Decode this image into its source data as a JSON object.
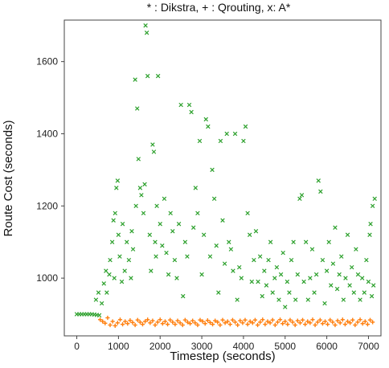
{
  "chart_data": {
    "type": "scatter",
    "title": "* : Dikstra, + : Qrouting, x: A*",
    "xlabel": "Timestep (seconds)",
    "ylabel": "Route Cost (seconds)",
    "xlim": [
      -300,
      7300
    ],
    "ylim": [
      840,
      1715
    ],
    "x_ticks": [
      0,
      1000,
      2000,
      3000,
      4000,
      5000,
      6000,
      7000
    ],
    "y_ticks": [
      1000,
      1200,
      1400,
      1600
    ],
    "grid": false,
    "legend": "none",
    "series": [
      {
        "marker": "x",
        "color": "#2ca02c",
        "points": [
          [
            0,
            900
          ],
          [
            60,
            900
          ],
          [
            120,
            900
          ],
          [
            180,
            900
          ],
          [
            240,
            900
          ],
          [
            300,
            900
          ],
          [
            360,
            900
          ],
          [
            420,
            899
          ],
          [
            480,
            898
          ],
          [
            540,
            897
          ],
          [
            460,
            940
          ],
          [
            520,
            960
          ],
          [
            600,
            930
          ],
          [
            650,
            985
          ],
          [
            700,
            1020
          ],
          [
            720,
            960
          ],
          [
            780,
            1010
          ],
          [
            800,
            1050
          ],
          [
            850,
            1100
          ],
          [
            880,
            1160
          ],
          [
            900,
            1000
          ],
          [
            920,
            1180
          ],
          [
            950,
            1250
          ],
          [
            980,
            1270
          ],
          [
            1000,
            1120
          ],
          [
            1030,
            1060
          ],
          [
            1080,
            990
          ],
          [
            1100,
            1150
          ],
          [
            1150,
            1020
          ],
          [
            1200,
            1100
          ],
          [
            1250,
            1050
          ],
          [
            1300,
            1000
          ],
          [
            1320,
            1130
          ],
          [
            1350,
            1080
          ],
          [
            1400,
            1550
          ],
          [
            1420,
            1200
          ],
          [
            1450,
            1470
          ],
          [
            1480,
            1330
          ],
          [
            1520,
            1250
          ],
          [
            1550,
            1230
          ],
          [
            1600,
            1180
          ],
          [
            1630,
            1260
          ],
          [
            1650,
            1700
          ],
          [
            1680,
            1680
          ],
          [
            1700,
            1560
          ],
          [
            1750,
            1120
          ],
          [
            1780,
            1020
          ],
          [
            1820,
            1370
          ],
          [
            1850,
            1350
          ],
          [
            1880,
            1100
          ],
          [
            1900,
            1060
          ],
          [
            1920,
            1200
          ],
          [
            1950,
            1560
          ],
          [
            2000,
            1150
          ],
          [
            2050,
            1090
          ],
          [
            2100,
            1220
          ],
          [
            2150,
            1070
          ],
          [
            2200,
            1010
          ],
          [
            2250,
            1180
          ],
          [
            2300,
            1130
          ],
          [
            2350,
            1050
          ],
          [
            2400,
            1000
          ],
          [
            2450,
            1150
          ],
          [
            2500,
            1480
          ],
          [
            2550,
            950
          ],
          [
            2600,
            1100
          ],
          [
            2650,
            1060
          ],
          [
            2700,
            1480
          ],
          [
            2750,
            1460
          ],
          [
            2800,
            1140
          ],
          [
            2850,
            1250
          ],
          [
            2900,
            1180
          ],
          [
            2950,
            1380
          ],
          [
            3000,
            1010
          ],
          [
            3050,
            1120
          ],
          [
            3100,
            1440
          ],
          [
            3150,
            1420
          ],
          [
            3200,
            1060
          ],
          [
            3250,
            1300
          ],
          [
            3300,
            1220
          ],
          [
            3350,
            1090
          ],
          [
            3400,
            960
          ],
          [
            3450,
            1380
          ],
          [
            3500,
            1160
          ],
          [
            3550,
            1040
          ],
          [
            3600,
            1400
          ],
          [
            3650,
            1100
          ],
          [
            3700,
            1080
          ],
          [
            3750,
            1020
          ],
          [
            3800,
            1400
          ],
          [
            3850,
            940
          ],
          [
            3900,
            1030
          ],
          [
            3950,
            1000
          ],
          [
            4000,
            1380
          ],
          [
            4050,
            1420
          ],
          [
            4100,
            1180
          ],
          [
            4150,
            1120
          ],
          [
            4200,
            990
          ],
          [
            4250,
            1050
          ],
          [
            4300,
            1130
          ],
          [
            4350,
            990
          ],
          [
            4400,
            1060
          ],
          [
            4450,
            950
          ],
          [
            4500,
            1020
          ],
          [
            4550,
            980
          ],
          [
            4600,
            1050
          ],
          [
            4650,
            1100
          ],
          [
            4700,
            960
          ],
          [
            4750,
            1000
          ],
          [
            4800,
            1030
          ],
          [
            4850,
            940
          ],
          [
            4900,
            1010
          ],
          [
            4950,
            1070
          ],
          [
            5000,
            920
          ],
          [
            5050,
            990
          ],
          [
            5100,
            960
          ],
          [
            5150,
            1050
          ],
          [
            5200,
            1100
          ],
          [
            5250,
            940
          ],
          [
            5300,
            1010
          ],
          [
            5350,
            1220
          ],
          [
            5400,
            1230
          ],
          [
            5450,
            990
          ],
          [
            5500,
            1100
          ],
          [
            5550,
            940
          ],
          [
            5600,
            1000
          ],
          [
            5650,
            1080
          ],
          [
            5700,
            960
          ],
          [
            5750,
            1010
          ],
          [
            5800,
            1270
          ],
          [
            5850,
            1240
          ],
          [
            5900,
            1050
          ],
          [
            5950,
            930
          ],
          [
            6000,
            1020
          ],
          [
            6050,
            1100
          ],
          [
            6100,
            980
          ],
          [
            6150,
            1040
          ],
          [
            6200,
            1140
          ],
          [
            6250,
            970
          ],
          [
            6300,
            1010
          ],
          [
            6350,
            1060
          ],
          [
            6400,
            940
          ],
          [
            6450,
            1000
          ],
          [
            6500,
            1120
          ],
          [
            6550,
            980
          ],
          [
            6600,
            1030
          ],
          [
            6650,
            960
          ],
          [
            6700,
            1080
          ],
          [
            6750,
            1010
          ],
          [
            6800,
            940
          ],
          [
            6850,
            1000
          ],
          [
            6900,
            960
          ],
          [
            6950,
            1050
          ],
          [
            7000,
            990
          ],
          [
            7050,
            1150
          ],
          [
            7100,
            1200
          ],
          [
            7150,
            1220
          ],
          [
            7120,
            980
          ],
          [
            7080,
            950
          ],
          [
            7030,
            1120
          ]
        ]
      },
      {
        "marker": "+",
        "color": "#ff7f0e",
        "points": [
          [
            560,
            885
          ],
          [
            620,
            880
          ],
          [
            680,
            875
          ],
          [
            740,
            890
          ],
          [
            800,
            870
          ],
          [
            860,
            880
          ],
          [
            920,
            868
          ],
          [
            980,
            876
          ],
          [
            1040,
            885
          ],
          [
            1100,
            872
          ],
          [
            1160,
            880
          ],
          [
            1220,
            874
          ],
          [
            1280,
            883
          ],
          [
            1340,
            877
          ],
          [
            1400,
            870
          ],
          [
            1460,
            884
          ],
          [
            1520,
            878
          ],
          [
            1580,
            872
          ],
          [
            1640,
            880
          ],
          [
            1700,
            885
          ],
          [
            1760,
            876
          ],
          [
            1820,
            882
          ],
          [
            1880,
            870
          ],
          [
            1940,
            878
          ],
          [
            2000,
            885
          ],
          [
            2060,
            874
          ],
          [
            2120,
            880
          ],
          [
            2180,
            872
          ],
          [
            2240,
            884
          ],
          [
            2300,
            878
          ],
          [
            2360,
            872
          ],
          [
            2420,
            882
          ],
          [
            2480,
            876
          ],
          [
            2540,
            870
          ],
          [
            2600,
            884
          ],
          [
            2660,
            878
          ],
          [
            2720,
            874
          ],
          [
            2780,
            882
          ],
          [
            2840,
            876
          ],
          [
            2900,
            870
          ],
          [
            2960,
            884
          ],
          [
            3020,
            880
          ],
          [
            3080,
            874
          ],
          [
            3140,
            883
          ],
          [
            3200,
            877
          ],
          [
            3260,
            872
          ],
          [
            3320,
            882
          ],
          [
            3380,
            878
          ],
          [
            3440,
            870
          ],
          [
            3500,
            884
          ],
          [
            3560,
            876
          ],
          [
            3620,
            880
          ],
          [
            3680,
            872
          ],
          [
            3740,
            884
          ],
          [
            3800,
            878
          ],
          [
            3860,
            870
          ],
          [
            3920,
            882
          ],
          [
            3980,
            876
          ],
          [
            4040,
            884
          ],
          [
            4100,
            872
          ],
          [
            4160,
            880
          ],
          [
            4220,
            876
          ],
          [
            4280,
            884
          ],
          [
            4340,
            870
          ],
          [
            4400,
            878
          ],
          [
            4460,
            885
          ],
          [
            4520,
            872
          ],
          [
            4580,
            880
          ],
          [
            4640,
            876
          ],
          [
            4700,
            884
          ],
          [
            4760,
            870
          ],
          [
            4820,
            878
          ],
          [
            4880,
            885
          ],
          [
            4940,
            874
          ],
          [
            5000,
            880
          ],
          [
            5060,
            872
          ],
          [
            5120,
            884
          ],
          [
            5180,
            878
          ],
          [
            5240,
            870
          ],
          [
            5300,
            882
          ],
          [
            5360,
            876
          ],
          [
            5420,
            884
          ],
          [
            5480,
            872
          ],
          [
            5540,
            880
          ],
          [
            5600,
            876
          ],
          [
            5660,
            885
          ],
          [
            5720,
            870
          ],
          [
            5780,
            878
          ],
          [
            5840,
            884
          ],
          [
            5900,
            874
          ],
          [
            5960,
            880
          ],
          [
            6020,
            872
          ],
          [
            6080,
            884
          ],
          [
            6140,
            878
          ],
          [
            6200,
            870
          ],
          [
            6260,
            882
          ],
          [
            6320,
            876
          ],
          [
            6380,
            885
          ],
          [
            6440,
            872
          ],
          [
            6500,
            880
          ],
          [
            6560,
            876
          ],
          [
            6620,
            884
          ],
          [
            6680,
            870
          ],
          [
            6740,
            878
          ],
          [
            6800,
            885
          ],
          [
            6860,
            874
          ],
          [
            6920,
            880
          ],
          [
            6980,
            872
          ],
          [
            7040,
            884
          ],
          [
            7100,
            878
          ]
        ]
      }
    ]
  }
}
